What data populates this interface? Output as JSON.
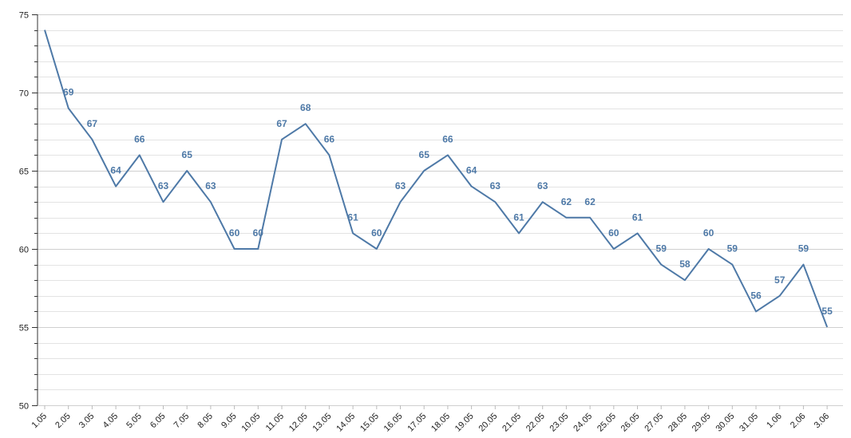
{
  "chart_data": {
    "type": "line",
    "title": "",
    "xlabel": "",
    "ylabel": "",
    "ylim": [
      50,
      75
    ],
    "y_ticks": [
      50,
      55,
      60,
      65,
      70,
      75
    ],
    "minor_tick_step": 1,
    "grid": true,
    "line_color": "#4e79a7",
    "categories": [
      "1.05",
      "2.05",
      "3.05",
      "4.05",
      "5.05",
      "6.05",
      "7.05",
      "8.05",
      "9.05",
      "10.05",
      "11.05",
      "12.05",
      "13.05",
      "14.05",
      "15.05",
      "16.05",
      "17.05",
      "18.05",
      "19.05",
      "20.05",
      "21.05",
      "22.05",
      "23.05",
      "24.05",
      "25.05",
      "26.05",
      "27.05",
      "28.05",
      "29.05",
      "30.05",
      "31.05",
      "1.06",
      "2.06",
      "3.06"
    ],
    "values": [
      74,
      69,
      67,
      64,
      66,
      63,
      65,
      63,
      60,
      60,
      67,
      68,
      66,
      61,
      60,
      63,
      65,
      66,
      64,
      63,
      61,
      63,
      62,
      62,
      60,
      61,
      59,
      58,
      60,
      59,
      56,
      57,
      59,
      55
    ],
    "label_first_point": false
  }
}
